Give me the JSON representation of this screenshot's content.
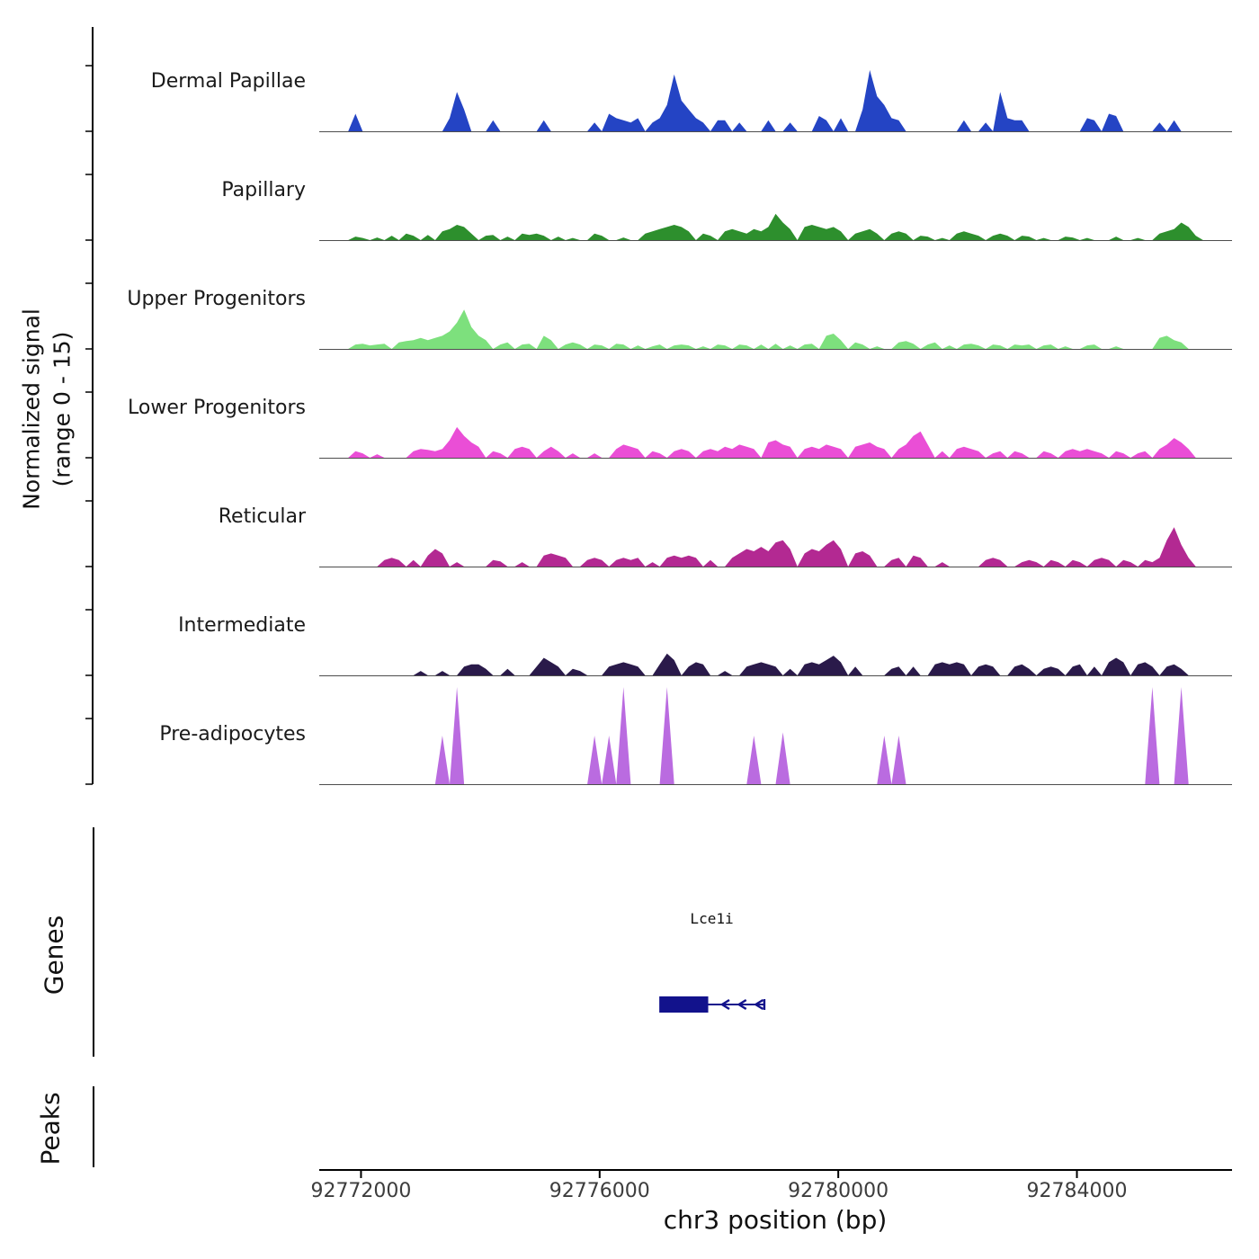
{
  "figure": {
    "y_axis_label": [
      "Normalized signal",
      "(range 0 - 15)"
    ],
    "genes_label": "Genes",
    "peaks_label": "Peaks",
    "x_axis_title": "chr3 position (bp)"
  },
  "chart_data": {
    "type": "area",
    "subtype": "genome-browser-signal-tracks",
    "chromosome": "chr3",
    "x_range_bp": [
      92771300,
      92786600
    ],
    "x_ticks": [
      {
        "bp": 92772000,
        "label": "92772000"
      },
      {
        "bp": 92776000,
        "label": "92776000"
      },
      {
        "bp": 92780000,
        "label": "92780000"
      },
      {
        "bp": 92784000,
        "label": "92784000"
      }
    ],
    "signal_range": [
      0,
      15
    ],
    "grid": false,
    "tracks": [
      {
        "name": "Dermal Papillae",
        "color": "#2444c4",
        "spiky": false,
        "values": [
          0,
          0,
          0,
          0,
          0,
          4,
          0,
          0,
          0,
          0,
          0,
          0,
          0,
          0,
          0,
          0,
          0,
          0,
          3,
          9,
          5,
          0,
          0,
          0,
          2.5,
          0,
          0,
          0,
          0,
          0,
          0,
          2.5,
          0,
          0,
          0,
          0,
          0,
          0,
          2,
          0,
          4,
          3,
          2.5,
          2,
          3,
          0,
          2,
          3,
          6,
          13,
          7,
          5,
          3,
          2,
          0,
          2.5,
          2.5,
          0,
          2,
          0,
          0,
          0,
          2.5,
          0,
          0,
          2,
          0,
          0,
          0,
          3.5,
          2.5,
          0,
          3,
          0,
          0,
          5,
          14,
          8,
          6,
          3,
          2.5,
          0,
          0,
          0,
          0,
          0,
          0,
          0,
          0,
          2.5,
          0,
          0,
          2,
          0,
          9,
          3,
          2.5,
          2.5,
          0,
          0,
          0,
          0,
          0,
          0,
          0,
          0,
          3,
          2.5,
          0,
          4,
          3.5,
          0,
          0,
          0,
          0,
          0,
          2,
          0,
          2.5,
          0,
          0,
          0,
          0,
          0,
          0,
          0,
          0
        ]
      },
      {
        "name": "Papillary",
        "color": "#2d8f2d",
        "spiky": false,
        "values": [
          0,
          0,
          0,
          0,
          0,
          0.8,
          0.5,
          0,
          0.6,
          0,
          1,
          0,
          1.5,
          1,
          0,
          1.2,
          0,
          2,
          2.5,
          3.5,
          3,
          1.5,
          0,
          1,
          1.2,
          0,
          0.8,
          0,
          1.5,
          1.2,
          1.5,
          1,
          0,
          0.8,
          0,
          0.5,
          0,
          0,
          1.5,
          1,
          0,
          0,
          0.6,
          0,
          0,
          1.5,
          2,
          2.5,
          3,
          3.5,
          3,
          2,
          0,
          1.5,
          1,
          0,
          2,
          2.5,
          2,
          1.5,
          2.5,
          2,
          3,
          6,
          4,
          2.5,
          0,
          3,
          3.5,
          3,
          2.5,
          3,
          2,
          0,
          1.5,
          2,
          2.5,
          1.5,
          0,
          1.5,
          2,
          1.5,
          0,
          1,
          0.8,
          0,
          0.5,
          0,
          1.5,
          2,
          1.5,
          1,
          0,
          1,
          1.5,
          1,
          0,
          1,
          0.8,
          0,
          0.5,
          0,
          0,
          0.8,
          0.6,
          0,
          0.5,
          0,
          0,
          0,
          0.8,
          0,
          0,
          0.5,
          0,
          0,
          1.5,
          2,
          2.5,
          4,
          3,
          1,
          0,
          0,
          0,
          0,
          0
        ]
      },
      {
        "name": "Upper Progenitors",
        "color": "#7de07d",
        "spiky": false,
        "values": [
          0,
          0,
          0,
          0,
          0,
          1,
          1.2,
          0.8,
          1,
          1.2,
          0,
          1.5,
          1.8,
          2,
          2.5,
          2,
          2.5,
          3,
          4,
          6,
          9,
          5,
          3,
          2,
          0,
          1,
          1.5,
          0,
          1,
          1.2,
          0,
          3,
          2,
          0,
          1,
          1.5,
          1,
          0,
          1,
          0.8,
          0,
          1.2,
          1,
          0,
          0.8,
          0,
          0.6,
          1,
          0,
          0.8,
          1,
          0.8,
          0,
          0.6,
          0,
          1,
          0.8,
          0,
          1,
          0.8,
          0,
          1,
          0,
          1.2,
          0,
          0.8,
          0,
          1,
          1.2,
          0,
          3,
          3.5,
          2,
          0,
          1.5,
          1,
          0,
          0.6,
          0,
          0,
          1.5,
          1.8,
          1.2,
          0,
          1,
          1.5,
          0,
          0.8,
          0,
          1,
          1.2,
          0.8,
          0,
          1,
          0.8,
          0,
          1,
          0.8,
          1,
          0,
          0.8,
          1,
          0,
          0.6,
          0,
          0,
          0.8,
          1,
          0,
          0,
          0.6,
          0,
          0,
          0,
          0,
          0,
          2.5,
          3,
          2,
          1.5,
          0,
          0,
          0,
          0,
          0,
          0,
          0
        ]
      },
      {
        "name": "Lower Progenitors",
        "color": "#ea4ed6",
        "spiky": false,
        "values": [
          0,
          0,
          0,
          0,
          0,
          1.5,
          1,
          0,
          0.8,
          0,
          0,
          0,
          0,
          1.5,
          2,
          1.8,
          1.5,
          2,
          4,
          7,
          5,
          3.5,
          2.5,
          0,
          1.5,
          1,
          0,
          2,
          2.5,
          2,
          0,
          1.5,
          2.5,
          1.5,
          0,
          1,
          0,
          0,
          1,
          0,
          0,
          2,
          3,
          2.5,
          2,
          0,
          1.5,
          1,
          0,
          1.5,
          2,
          1.5,
          0,
          1.5,
          2,
          1.5,
          2.5,
          2,
          3,
          2.5,
          2,
          0,
          3.5,
          4,
          3,
          2.5,
          0,
          2,
          2.5,
          2,
          3,
          2.5,
          2,
          0,
          2.5,
          3,
          3.5,
          2.5,
          2,
          0,
          2,
          3,
          5,
          6,
          3,
          0,
          1.5,
          0,
          2,
          2.5,
          2,
          1.5,
          0,
          1,
          1.5,
          0,
          1.5,
          1,
          0,
          0,
          1.5,
          1,
          0,
          1.5,
          2,
          1.5,
          2,
          1.5,
          1,
          0,
          1.5,
          1,
          0,
          1,
          1.5,
          0,
          2,
          3,
          4.5,
          3.5,
          2,
          0,
          0,
          0,
          0,
          0,
          0
        ]
      },
      {
        "name": "Reticular",
        "color": "#b32992",
        "spiky": false,
        "values": [
          0,
          0,
          0,
          0,
          0,
          0,
          0,
          0,
          0,
          1.5,
          2,
          1.5,
          0,
          1.5,
          0,
          2.5,
          4,
          3,
          0,
          1,
          0,
          0,
          0,
          0,
          1.5,
          1.2,
          0,
          0,
          1,
          0,
          0,
          2.5,
          3,
          2.5,
          2,
          0,
          0,
          1.5,
          2,
          1.5,
          0,
          1.5,
          2,
          1.5,
          2,
          0,
          1,
          0,
          2,
          2.5,
          2,
          2.5,
          2,
          0,
          1.5,
          0,
          0,
          2,
          3,
          4,
          3.5,
          4.5,
          3.5,
          5.5,
          6,
          4,
          0,
          3,
          4,
          3.5,
          5,
          6,
          4,
          0,
          3,
          3.5,
          2.5,
          0,
          0,
          1.5,
          2,
          0,
          2.5,
          2,
          0,
          0,
          1,
          0,
          0,
          0,
          0,
          0,
          1.5,
          2,
          1.5,
          0,
          0,
          1,
          1.5,
          1,
          0,
          1.5,
          1,
          0,
          1.5,
          1,
          0,
          1.5,
          2,
          1.5,
          0,
          1.5,
          1,
          0,
          1.5,
          1,
          2,
          6,
          9,
          5,
          2,
          0,
          0,
          0,
          0,
          0,
          0
        ]
      },
      {
        "name": "Intermediate",
        "color": "#2a1a4a",
        "spiky": false,
        "values": [
          0,
          0,
          0,
          0,
          0,
          0,
          0,
          0,
          0,
          0,
          0,
          0,
          0,
          0,
          1,
          0,
          0,
          1,
          0,
          0,
          2,
          2.5,
          2.5,
          1.5,
          0,
          0,
          1.5,
          0,
          0,
          0,
          2,
          4,
          3,
          2,
          0,
          1.5,
          1,
          0,
          0,
          0,
          2,
          2.5,
          3,
          2.5,
          2,
          0,
          0,
          2.5,
          5,
          3.5,
          0,
          2,
          3,
          2.5,
          0,
          0,
          1,
          0,
          0,
          2,
          2.5,
          3,
          2.5,
          2,
          0,
          1.5,
          0,
          2.5,
          3,
          2.5,
          3.5,
          4.5,
          3,
          0,
          2,
          0,
          0,
          0,
          0,
          1.5,
          2,
          0,
          2,
          0,
          0,
          2.5,
          3,
          2.5,
          3,
          2.5,
          0,
          2,
          2.5,
          2,
          0,
          0,
          2,
          2.5,
          1.5,
          0,
          1.5,
          2,
          1.5,
          0,
          2,
          2.5,
          0,
          2,
          0,
          3,
          4,
          3,
          0,
          2.5,
          3,
          2,
          0,
          2,
          2.5,
          1.5,
          0,
          0,
          0,
          0,
          0,
          0,
          0
        ]
      },
      {
        "name": "Pre-adipocytes",
        "color": "#ba6be0",
        "spiky": true,
        "values": [
          0,
          0,
          0,
          0,
          0,
          0,
          0,
          0,
          0,
          0,
          0,
          0,
          0,
          0,
          0,
          0,
          0,
          7.5,
          0,
          15,
          0,
          0,
          0,
          0,
          0,
          0,
          0,
          0,
          0,
          0,
          0,
          0,
          0,
          0,
          0,
          0,
          0,
          0,
          7.5,
          0,
          7.5,
          0,
          15,
          0,
          0,
          0,
          0,
          0,
          15,
          0,
          0,
          0,
          0,
          0,
          0,
          0,
          0,
          0,
          0,
          0,
          7.5,
          0,
          0,
          0,
          8,
          0,
          0,
          0,
          0,
          0,
          0,
          0,
          0,
          0,
          0,
          0,
          0,
          0,
          7.5,
          0,
          7.5,
          0,
          0,
          0,
          0,
          0,
          0,
          0,
          0,
          0,
          0,
          0,
          0,
          0,
          0,
          0,
          0,
          0,
          0,
          0,
          0,
          0,
          0,
          0,
          0,
          0,
          0,
          0,
          0,
          0,
          0,
          0,
          0,
          0,
          0,
          15,
          0,
          0,
          0,
          15,
          0,
          0,
          0,
          0,
          0,
          0,
          0
        ]
      }
    ],
    "genes": [
      {
        "name": "Lce1i",
        "strand": "-",
        "color": "#12128c",
        "thick_start_bp": 92777000,
        "thick_end_bp": 92777820,
        "end_bp": 92778760
      }
    ],
    "peaks": []
  }
}
